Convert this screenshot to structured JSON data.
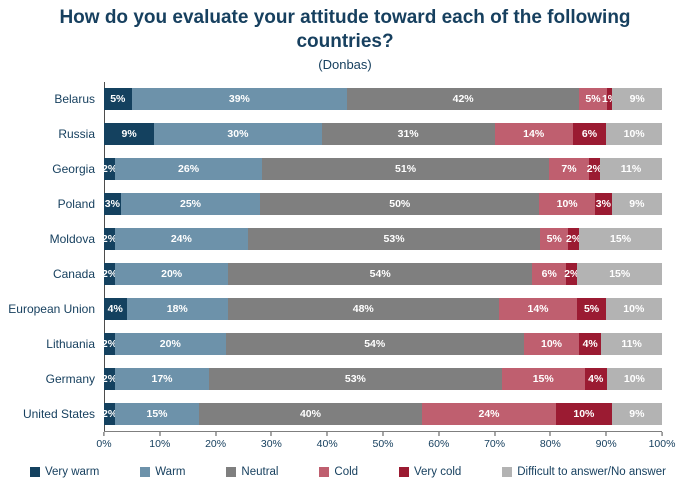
{
  "chart_data": {
    "type": "bar",
    "stacked": true,
    "orientation": "horizontal",
    "title": "How do you evaluate your attitude toward each of the following countries?",
    "subtitle": "(Donbas)",
    "categories": [
      "Belarus",
      "Russia",
      "Georgia",
      "Poland",
      "Moldova",
      "Canada",
      "European Union",
      "Lithuania",
      "Germany",
      "United States"
    ],
    "series": [
      {
        "name": "Very warm",
        "color": "#14415f",
        "values": [
          5,
          9,
          2,
          3,
          2,
          2,
          4,
          2,
          2,
          2
        ]
      },
      {
        "name": "Warm",
        "color": "#6d92aa",
        "values": [
          39,
          30,
          26,
          25,
          24,
          20,
          18,
          20,
          17,
          15
        ]
      },
      {
        "name": "Neutral",
        "color": "#7f7f7f",
        "values": [
          42,
          31,
          51,
          50,
          53,
          54,
          48,
          54,
          53,
          40
        ]
      },
      {
        "name": "Cold",
        "color": "#bf5f6f",
        "values": [
          5,
          14,
          7,
          10,
          5,
          6,
          14,
          10,
          15,
          24
        ]
      },
      {
        "name": "Very cold",
        "color": "#9b1b32",
        "values": [
          1,
          6,
          2,
          3,
          2,
          2,
          5,
          4,
          4,
          10
        ]
      },
      {
        "name": "Difficult to answer/No answer",
        "color": "#b3b3b3",
        "values": [
          9,
          10,
          11,
          9,
          15,
          15,
          10,
          11,
          10,
          9
        ]
      }
    ],
    "x_ticks": [
      "0%",
      "10%",
      "20%",
      "30%",
      "40%",
      "50%",
      "60%",
      "70%",
      "80%",
      "90%",
      "100%"
    ],
    "xlim": [
      0,
      100
    ],
    "value_suffix": "%",
    "legend_position": "bottom",
    "grid": false,
    "text_color": "#17405f"
  }
}
